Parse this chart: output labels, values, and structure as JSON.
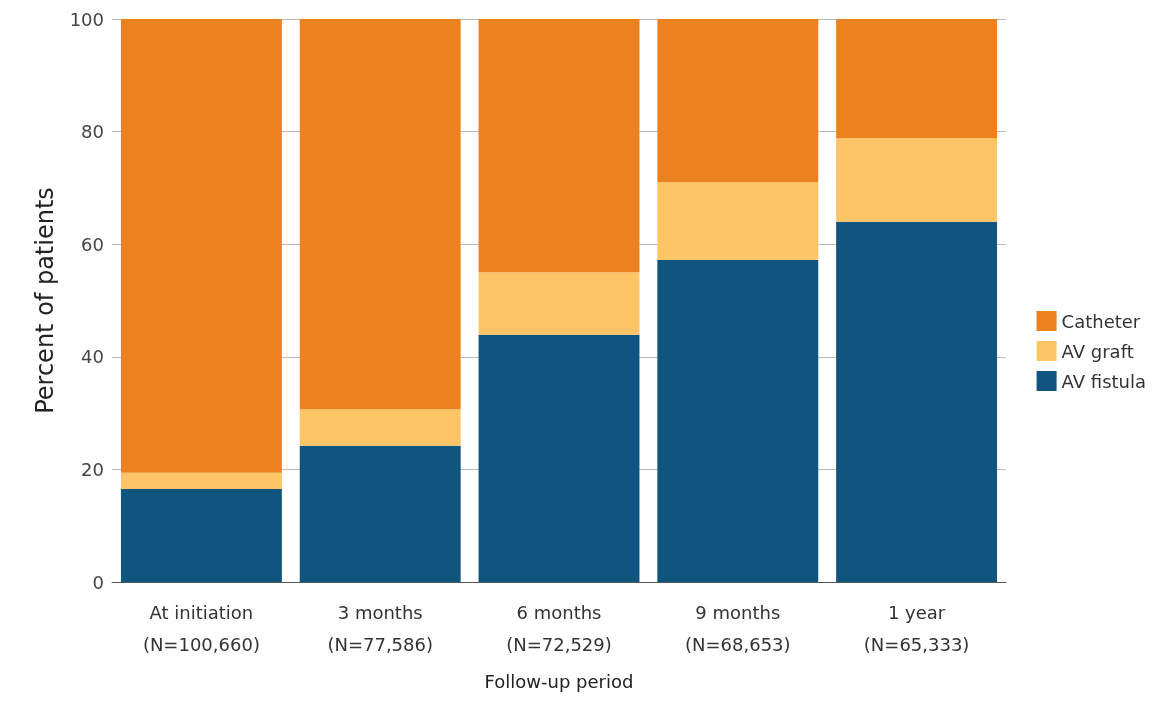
{
  "chart_data": {
    "type": "bar",
    "stacked": true,
    "xlabel": "Follow-up period",
    "ylabel": "Percent of patients",
    "categories": [
      "At initiation\n(N=100,660)",
      "3 months\n(N=77,586)",
      "6 months\n(N=72,529)",
      "9 months\n(N=68,653)",
      "1 year\n(N=65,333)"
    ],
    "series": [
      {
        "name": "AV fistula",
        "color": "#0f5580",
        "values": [
          16.5,
          24.2,
          43.9,
          57.2,
          64.0
        ]
      },
      {
        "name": "AV graft",
        "color": "#fec567",
        "values": [
          2.9,
          6.5,
          11.1,
          13.8,
          14.8
        ]
      },
      {
        "name": "Catheter",
        "color": "#ec8120",
        "values": [
          80.6,
          69.3,
          45.0,
          29.0,
          21.2
        ]
      }
    ],
    "ylim": [
      0,
      100
    ],
    "yticks": [
      0,
      20,
      40,
      60,
      80,
      100
    ],
    "grid": "y",
    "legend": "right"
  }
}
